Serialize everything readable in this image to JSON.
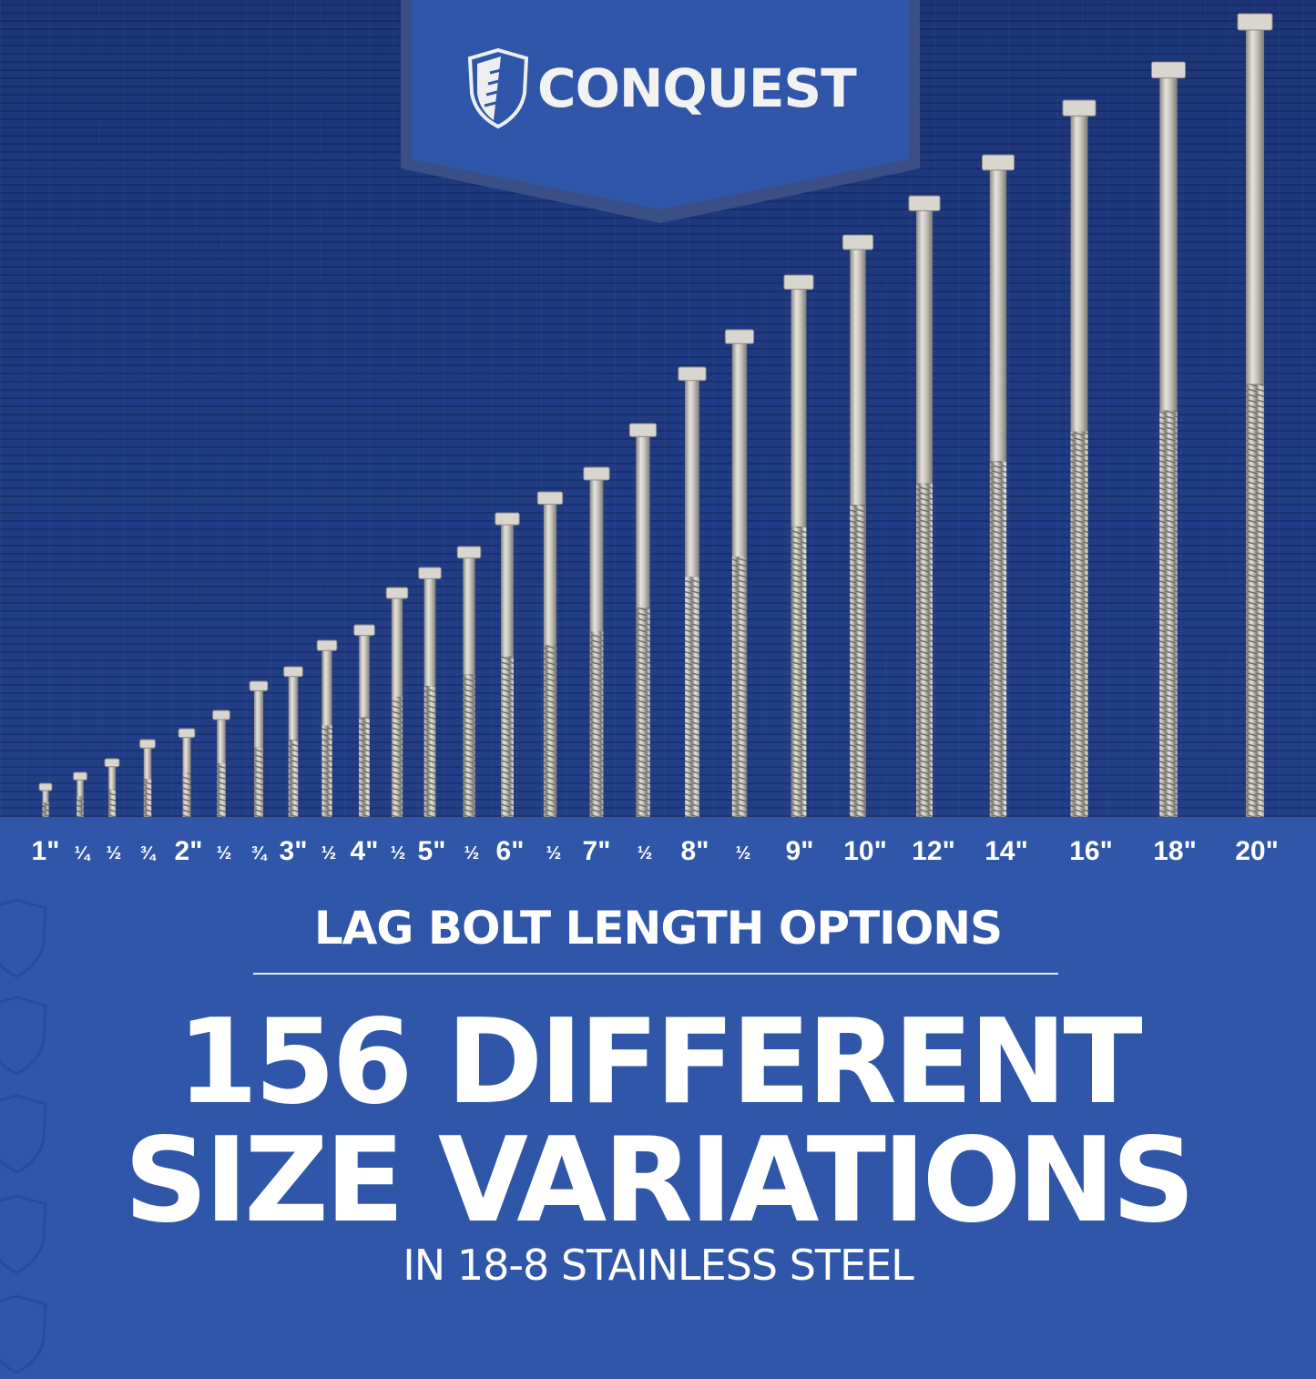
{
  "brand": {
    "name": "CONQUEST",
    "logo_icon": "shield-screw-icon",
    "banner_color": "#2f56a8"
  },
  "background": {
    "wood_color": "#1f3a82",
    "panel_color": "#2f56a8"
  },
  "length_labels": [
    "1\"",
    "¼",
    "½",
    "¾",
    "2\"",
    "½",
    "¾",
    "3\"",
    "½",
    "4\"",
    "½",
    "5\"",
    "½",
    "6\"",
    "½",
    "7\"",
    "½",
    "8\"",
    "½",
    "9\"",
    "10\"",
    "12\"",
    "14\"",
    "16\"",
    "18\"",
    "20\""
  ],
  "subtitle": "LAG BOLT LENGTH OPTIONS",
  "headline_line1": "156 DIFFERENT",
  "headline_line2": "SIZE VARIATIONS",
  "material": "IN 18-8 STAINLESS STEEL"
}
